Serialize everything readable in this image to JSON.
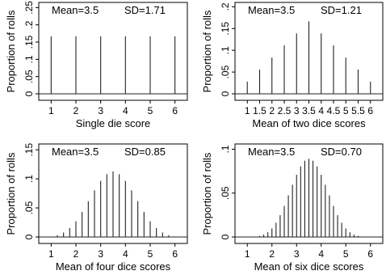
{
  "chart_data": [
    {
      "type": "bar",
      "xlabel": "Single die score",
      "ylabel": "Proportion of rolls",
      "mean_text": "Mean=3.5",
      "sd_text": "SD=1.71",
      "xlim": [
        0.5,
        6.5
      ],
      "ylim": [
        0,
        0.265
      ],
      "xticks": [
        "1",
        "2",
        "3",
        "4",
        "5",
        "6"
      ],
      "yticks": [
        "0",
        ".05",
        ".1",
        ".15",
        ".2",
        ".25"
      ],
      "x": [
        1,
        2,
        3,
        4,
        5,
        6
      ],
      "values": [
        0.1667,
        0.1667,
        0.1667,
        0.1667,
        0.1667,
        0.1667
      ]
    },
    {
      "type": "bar",
      "xlabel": "Mean of two dice scores",
      "ylabel": "Proportion of rolls",
      "mean_text": "Mean=3.5",
      "sd_text": "SD=1.21",
      "xlim": [
        0.5,
        6.5
      ],
      "ylim": [
        0,
        0.21
      ],
      "xticks": [
        "1",
        "1.5",
        "2",
        "2.5",
        "3",
        "3.5",
        "4",
        "4.5",
        "5",
        "5.5",
        "6"
      ],
      "yticks": [
        "0",
        ".05",
        ".1",
        ".15",
        ".2"
      ],
      "x": [
        1,
        1.5,
        2,
        2.5,
        3,
        3.5,
        4,
        4.5,
        5,
        5.5,
        6
      ],
      "values": [
        0.0278,
        0.0556,
        0.0833,
        0.1111,
        0.1389,
        0.1667,
        0.1389,
        0.1111,
        0.0833,
        0.0556,
        0.0278
      ]
    },
    {
      "type": "bar",
      "xlabel": "Mean of four dice scores",
      "ylabel": "Proportion of rolls",
      "mean_text": "Mean=3.5",
      "sd_text": "SD=0.85",
      "xlim": [
        0.5,
        6.5
      ],
      "ylim": [
        0,
        0.16
      ],
      "xticks": [
        "1",
        "2",
        "3",
        "4",
        "5",
        "6"
      ],
      "yticks": [
        "0",
        ".05",
        ".1",
        ".15"
      ],
      "x": [
        1,
        1.25,
        1.5,
        1.75,
        2,
        2.25,
        2.5,
        2.75,
        3,
        3.25,
        3.5,
        3.75,
        4,
        4.25,
        4.5,
        4.75,
        5,
        5.25,
        5.5,
        5.75,
        6
      ],
      "values": [
        0.0008,
        0.0031,
        0.0077,
        0.0154,
        0.027,
        0.0432,
        0.0617,
        0.0802,
        0.0965,
        0.108,
        0.1127,
        0.108,
        0.0965,
        0.0802,
        0.0617,
        0.0432,
        0.027,
        0.0154,
        0.0077,
        0.0031,
        0.0008
      ]
    },
    {
      "type": "bar",
      "xlabel": "Mean of six dice scores",
      "ylabel": "Proportion of rolls",
      "mean_text": "Mean=3.5",
      "sd_text": "SD=0.70",
      "xlim": [
        0.5,
        6.5
      ],
      "ylim": [
        0,
        0.106
      ],
      "xticks": [
        "1",
        "2",
        "3",
        "4",
        "5",
        "6"
      ],
      "yticks": [
        "0",
        ".05",
        ".1"
      ],
      "x": [
        1,
        1.1667,
        1.3333,
        1.5,
        1.6667,
        1.8333,
        2,
        2.1667,
        2.3333,
        2.5,
        2.6667,
        2.8333,
        3,
        3.1667,
        3.3333,
        3.5,
        3.6667,
        3.8333,
        4,
        4.1667,
        4.3333,
        4.5,
        4.6667,
        4.8333,
        5,
        5.1667,
        5.3333,
        5.5,
        5.6667,
        5.8333,
        6
      ],
      "values": [
        2.14e-05,
        0.000129,
        0.00045,
        0.0012,
        0.0027,
        0.0054,
        0.00977,
        0.0162,
        0.0248,
        0.0354,
        0.0474,
        0.0595,
        0.0709,
        0.0805,
        0.0869,
        0.0891,
        0.0869,
        0.0805,
        0.0709,
        0.0595,
        0.0474,
        0.0354,
        0.0248,
        0.0162,
        0.00977,
        0.0054,
        0.0027,
        0.0012,
        0.00045,
        0.000129,
        2.14e-05
      ]
    }
  ]
}
